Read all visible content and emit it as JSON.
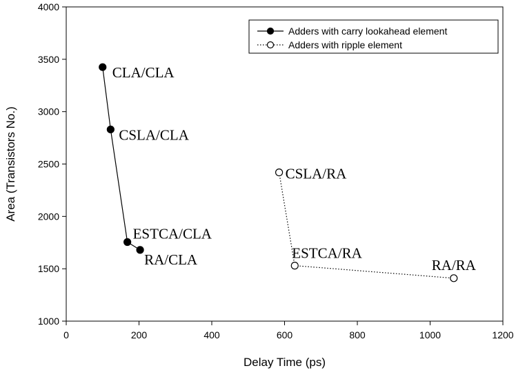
{
  "chart_data": {
    "type": "line",
    "title": "",
    "xlabel": "Delay Time (ps)",
    "ylabel": "Area (Transistors No.)",
    "xlim": [
      0,
      1200
    ],
    "ylim": [
      1000,
      4000
    ],
    "xticks": [
      0,
      200,
      400,
      600,
      800,
      1000,
      1200
    ],
    "yticks": [
      1000,
      1500,
      2000,
      2500,
      3000,
      3500,
      4000
    ],
    "grid": false,
    "legend_position": "top-right",
    "series": [
      {
        "name": "Adders with carry lookahead element",
        "marker": "filled-circle",
        "line_style": "solid",
        "color": "#000000",
        "points": [
          {
            "x": 100,
            "y": 3425,
            "label": "CLA/CLA"
          },
          {
            "x": 122,
            "y": 2830,
            "label": "CSLA/CLA"
          },
          {
            "x": 168,
            "y": 1755,
            "label": "ESTCA/CLA"
          },
          {
            "x": 203,
            "y": 1680,
            "label": "RA/CLA"
          }
        ]
      },
      {
        "name": "Adders with ripple element",
        "marker": "open-circle",
        "line_style": "dotted",
        "color": "#000000",
        "points": [
          {
            "x": 585,
            "y": 2420,
            "label": "CSLA/RA"
          },
          {
            "x": 628,
            "y": 1530,
            "label": "ESTCA/RA"
          },
          {
            "x": 1065,
            "y": 1410,
            "label": "RA/RA"
          }
        ]
      }
    ]
  }
}
